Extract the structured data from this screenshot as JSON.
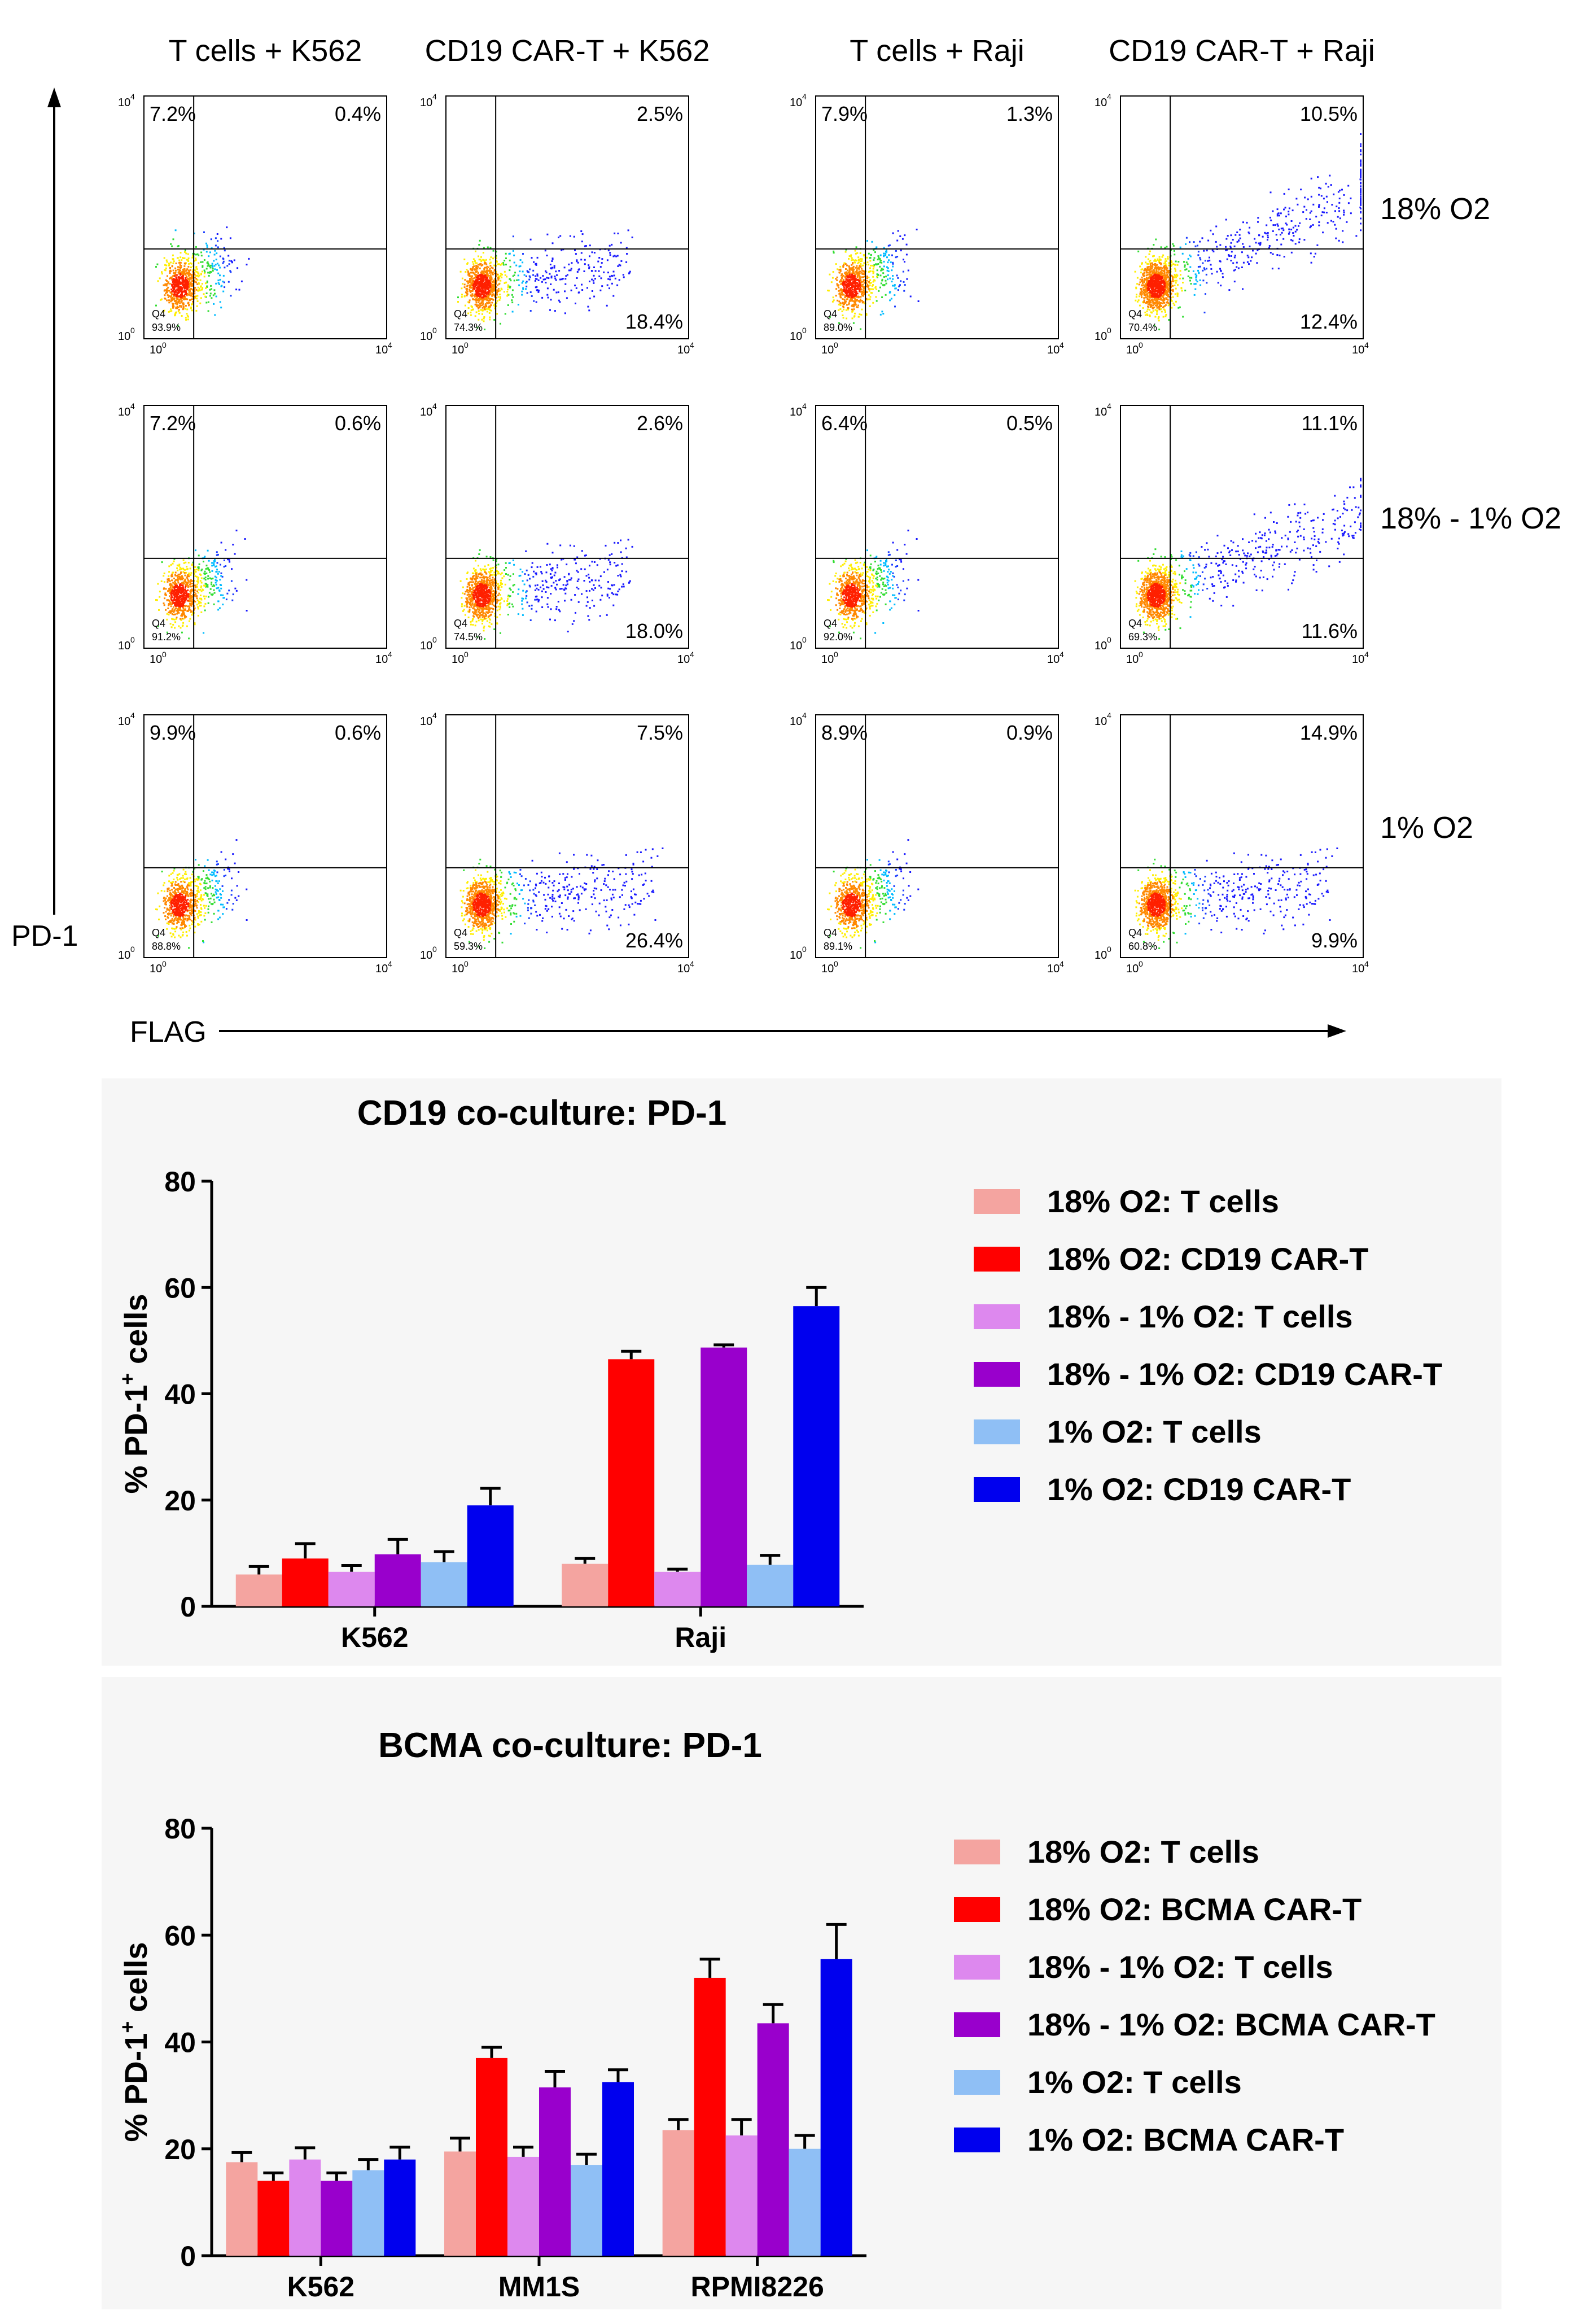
{
  "flow": {
    "columns": [
      "T cells + K562",
      "CD19 CAR-T + K562",
      "T cells + Raji",
      "CD19 CAR-T + Raji"
    ],
    "rows": [
      "18% O2",
      "18% - 1% O2",
      "1% O2"
    ],
    "y_axis_label": "PD-1",
    "x_axis_label": "FLAG",
    "tick_low": "10",
    "tick_high": "10",
    "tick_low_exp": "0",
    "tick_high_exp": "4",
    "q4_label": "Q4",
    "spread": [
      [
        0.3,
        0.85,
        0.3,
        1.45
      ],
      [
        0.3,
        0.85,
        0.3,
        1.25
      ],
      [
        0.3,
        1.0,
        0.3,
        1.0
      ]
    ],
    "panels": [
      [
        {
          "ul": "7.2%",
          "ur": "0.4%",
          "lr": "",
          "q4": "93.9%"
        },
        {
          "ul": "",
          "ur": "2.5%",
          "lr": "18.4%",
          "q4": "74.3%"
        },
        {
          "ul": "7.9%",
          "ur": "1.3%",
          "lr": "",
          "q4": "89.0%"
        },
        {
          "ul": "",
          "ur": "10.5%",
          "lr": "12.4%",
          "q4": "70.4%"
        }
      ],
      [
        {
          "ul": "7.2%",
          "ur": "0.6%",
          "lr": "",
          "q4": "91.2%"
        },
        {
          "ul": "",
          "ur": "2.6%",
          "lr": "18.0%",
          "q4": "74.5%"
        },
        {
          "ul": "6.4%",
          "ur": "0.5%",
          "lr": "",
          "q4": "92.0%"
        },
        {
          "ul": "",
          "ur": "11.1%",
          "lr": "11.6%",
          "q4": "69.3%"
        }
      ],
      [
        {
          "ul": "9.9%",
          "ur": "0.6%",
          "lr": "",
          "q4": "88.8%"
        },
        {
          "ul": "",
          "ur": "7.5%",
          "lr": "26.4%",
          "q4": "59.3%"
        },
        {
          "ul": "8.9%",
          "ur": "0.9%",
          "lr": "",
          "q4": "89.1%"
        },
        {
          "ul": "",
          "ur": "14.9%",
          "lr": "9.9%",
          "q4": "60.8%"
        }
      ]
    ]
  },
  "chart_data": [
    {
      "type": "bar",
      "title": "CD19 co-culture: PD-1",
      "ylabel": "% PD-1",
      "ylabel_sup": "+",
      "ylabel_suffix": " cells",
      "xlabel": "",
      "ylim": [
        0,
        80
      ],
      "yticks": [
        0,
        20,
        40,
        60,
        80
      ],
      "categories": [
        "K562",
        "Raji"
      ],
      "series": [
        {
          "name": "18% O2: T cells",
          "color": "#f4a4a0",
          "values": [
            6.0,
            8.0
          ],
          "errors": [
            1.5,
            1.0
          ]
        },
        {
          "name": "18% O2: CD19 CAR-T",
          "color": "#ff0000",
          "values": [
            9.0,
            46.5
          ],
          "errors": [
            2.8,
            1.5
          ]
        },
        {
          "name": "18% - 1% O2: T cells",
          "color": "#dd88ee",
          "values": [
            6.5,
            6.5
          ],
          "errors": [
            1.2,
            0.5
          ]
        },
        {
          "name": "18% - 1% O2: CD19 CAR-T",
          "color": "#9900cc",
          "values": [
            9.8,
            48.7
          ],
          "errors": [
            2.8,
            0.5
          ]
        },
        {
          "name": "1% O2: T cells",
          "color": "#8fbff5",
          "values": [
            8.3,
            7.8
          ],
          "errors": [
            2.0,
            1.8
          ]
        },
        {
          "name": "1% O2: CD19 CAR-T",
          "color": "#0000ee",
          "values": [
            19.0,
            56.5
          ],
          "errors": [
            3.2,
            3.5
          ]
        }
      ]
    },
    {
      "type": "bar",
      "title": "BCMA co-culture: PD-1",
      "ylabel": "% PD-1",
      "ylabel_sup": "+",
      "ylabel_suffix": " cells",
      "xlabel": "",
      "ylim": [
        0,
        80
      ],
      "yticks": [
        0,
        20,
        40,
        60,
        80
      ],
      "categories": [
        "K562",
        "MM1S",
        "RPMI8226"
      ],
      "series": [
        {
          "name": "18% O2: T cells",
          "color": "#f4a4a0",
          "values": [
            17.5,
            19.5,
            23.5
          ],
          "errors": [
            1.8,
            2.5,
            2.0
          ]
        },
        {
          "name": "18% O2: BCMA CAR-T",
          "color": "#ff0000",
          "values": [
            14.0,
            37.0,
            52.0
          ],
          "errors": [
            1.5,
            2.0,
            3.5
          ]
        },
        {
          "name": "18% - 1% O2: T cells",
          "color": "#dd88ee",
          "values": [
            18.0,
            18.5,
            22.5
          ],
          "errors": [
            2.2,
            1.8,
            3.0
          ]
        },
        {
          "name": "18% - 1% O2: BCMA CAR-T",
          "color": "#9900cc",
          "values": [
            14.0,
            31.5,
            43.5
          ],
          "errors": [
            1.5,
            3.0,
            3.5
          ]
        },
        {
          "name": "1% O2: T cells",
          "color": "#8fbff5",
          "values": [
            16.0,
            17.0,
            20.0
          ],
          "errors": [
            2.0,
            2.0,
            2.5
          ]
        },
        {
          "name": "1% O2: BCMA CAR-T",
          "color": "#0000ee",
          "values": [
            18.0,
            32.5,
            55.5
          ],
          "errors": [
            2.3,
            2.3,
            6.5
          ]
        }
      ]
    }
  ]
}
